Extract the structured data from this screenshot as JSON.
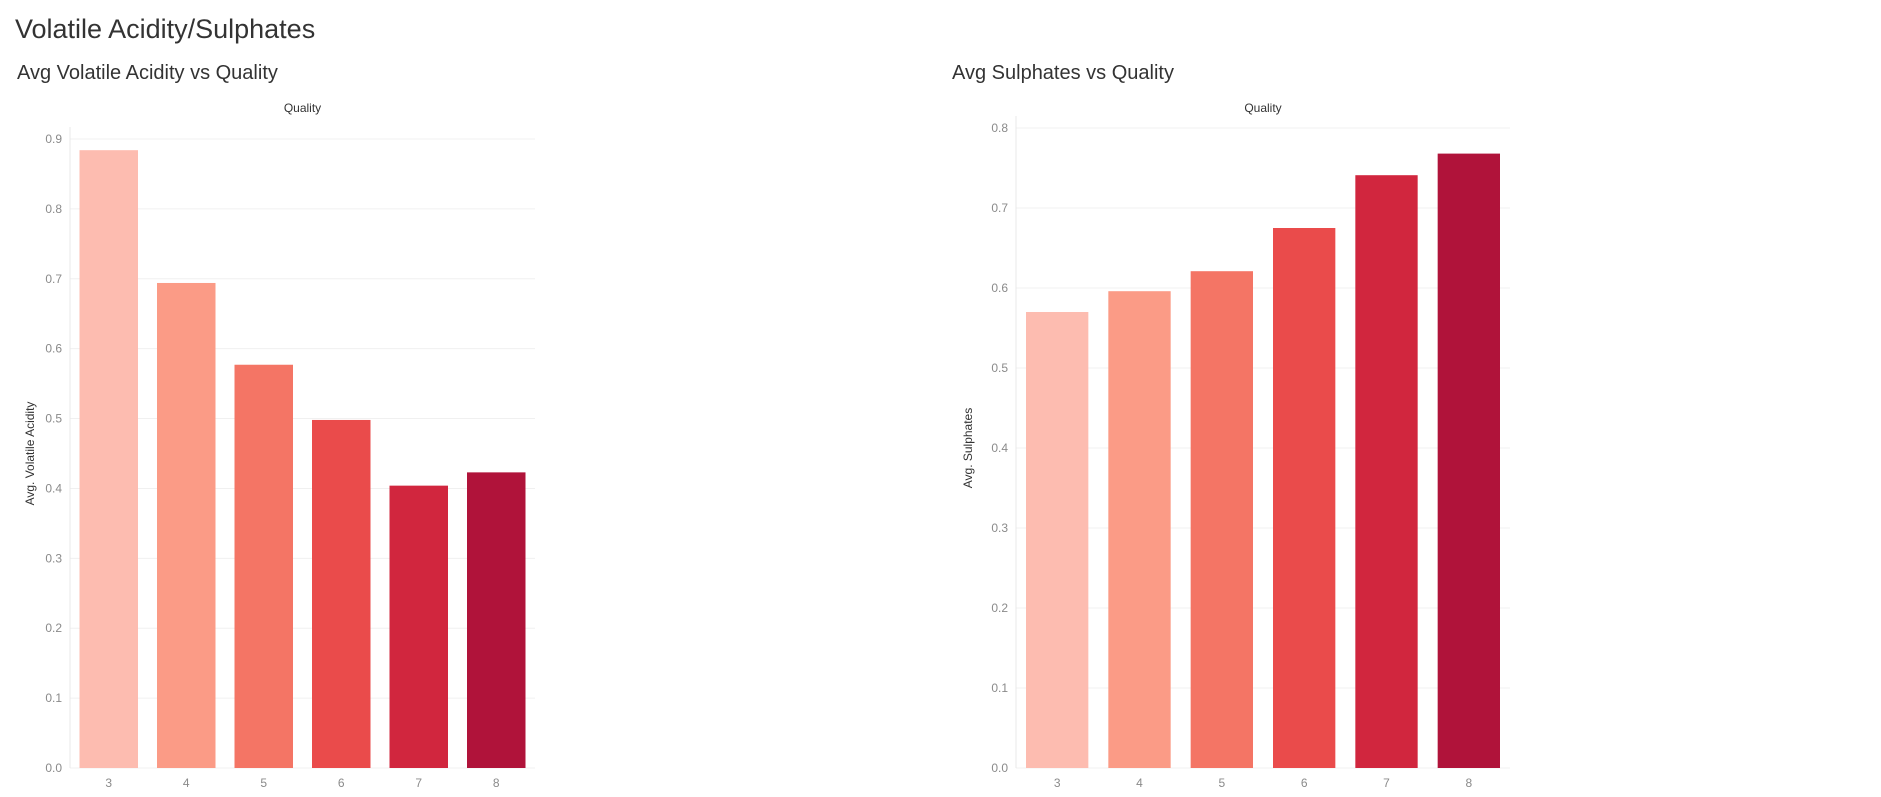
{
  "dashboard": {
    "title": "Volatile Acidity/Sulphates"
  },
  "chart_data": [
    {
      "type": "bar",
      "title": "Avg Volatile Acidity vs Quality",
      "xlabel": "Quality",
      "ylabel": "Avg. Volatile Acidity",
      "categories": [
        "3",
        "4",
        "5",
        "6",
        "7",
        "8"
      ],
      "values": [
        0.884,
        0.694,
        0.577,
        0.498,
        0.404,
        0.423
      ],
      "ylim": [
        0,
        0.9
      ],
      "yticks": [
        "0.0",
        "0.1",
        "0.2",
        "0.3",
        "0.4",
        "0.5",
        "0.6",
        "0.7",
        "0.8",
        "0.9"
      ],
      "colors": [
        "#fdbcb0",
        "#fb9b86",
        "#f47565",
        "#ea4b4b",
        "#d1263e",
        "#b0133a"
      ],
      "grid": true
    },
    {
      "type": "bar",
      "title": "Avg Sulphates vs Quality",
      "xlabel": "Quality",
      "ylabel": "Avg. Sulphates",
      "categories": [
        "3",
        "4",
        "5",
        "6",
        "7",
        "8"
      ],
      "values": [
        0.57,
        0.596,
        0.621,
        0.675,
        0.741,
        0.768
      ],
      "ylim": [
        0,
        0.8
      ],
      "yticks": [
        "0.0",
        "0.1",
        "0.2",
        "0.3",
        "0.4",
        "0.5",
        "0.6",
        "0.7",
        "0.8"
      ],
      "colors": [
        "#fdbcb0",
        "#fb9b86",
        "#f47565",
        "#ea4b4b",
        "#d1263e",
        "#b0133a"
      ],
      "grid": true
    }
  ]
}
